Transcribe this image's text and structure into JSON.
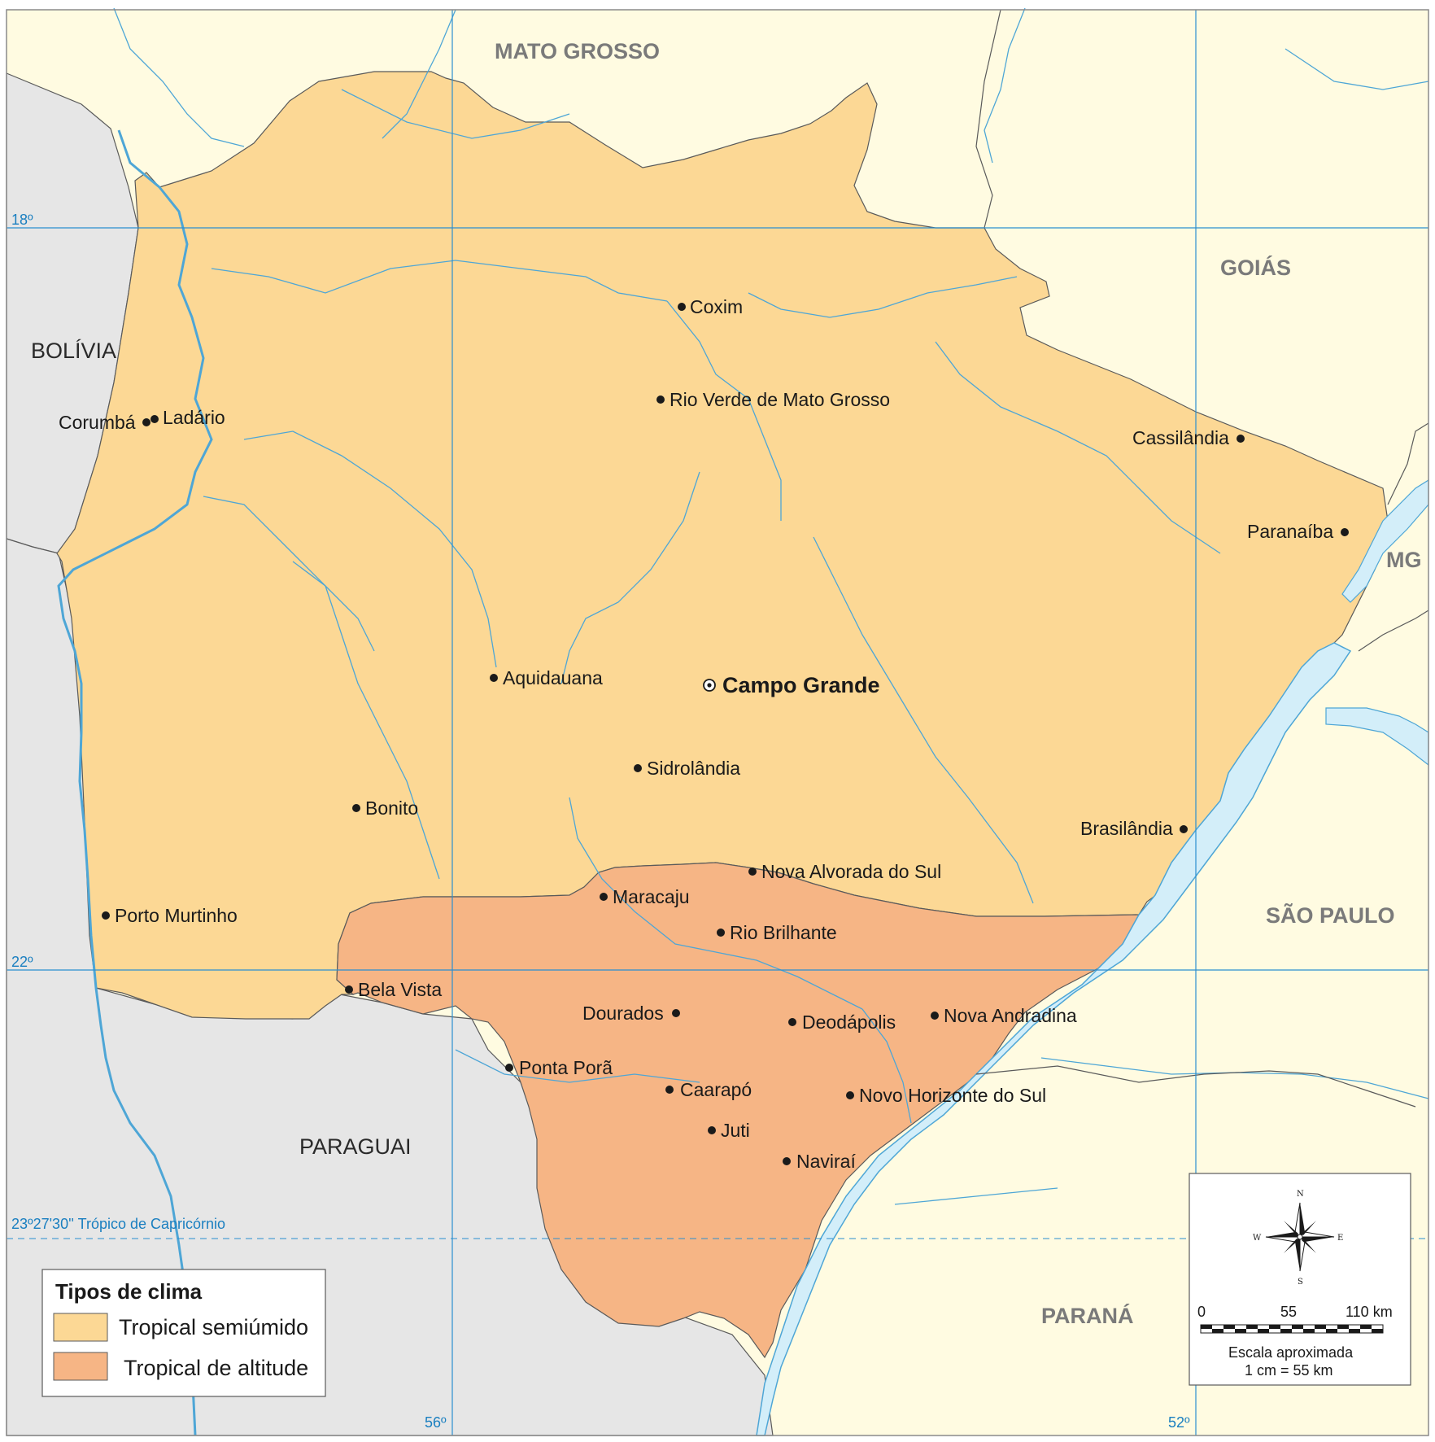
{
  "map": {
    "neighbors": {
      "mato_grosso": "MATO GROSSO",
      "goias": "GOIÁS",
      "mg": "MG",
      "sao_paulo": "SÃO PAULO",
      "parana": "PARANÁ",
      "bolivia": "BOLÍVIA",
      "paraguai": "PARAGUAI"
    },
    "coords": {
      "lat18": "18º",
      "lat22": "22º",
      "lon56": "56º",
      "lon52": "52º",
      "tropic": "23º27'30'' Trópico de Capricórnio"
    },
    "capital": "Campo Grande",
    "cities": {
      "coxim": "Coxim",
      "rio_verde": "Rio Verde de Mato Grosso",
      "corumba": "Corumbá",
      "ladario": "Ladário",
      "cassilandia": "Cassilândia",
      "paranaiba": "Paranaíba",
      "aquidauana": "Aquidauana",
      "sidrolandia": "Sidrolândia",
      "bonito": "Bonito",
      "brasilandia": "Brasilândia",
      "nova_alvorada": "Nova Alvorada do Sul",
      "maracaju": "Maracaju",
      "porto_murtinho": "Porto Murtinho",
      "rio_brilhante": "Rio Brilhante",
      "bela_vista": "Bela Vista",
      "dourados": "Dourados",
      "deodapolis": "Deodápolis",
      "nova_andradina": "Nova Andradina",
      "ponta_pora": "Ponta Porã",
      "caarapo": "Caarapó",
      "novo_horizonte": "Novo Horizonte do Sul",
      "juti": "Juti",
      "navirai": "Naviraí"
    },
    "colors": {
      "semiumido": "#fcd895",
      "altitude": "#f6b585",
      "brazil_land": "#fffbe1",
      "foreign_land": "#e6e6e6",
      "water": "#d3eef9",
      "river": "#4ea6d6",
      "grid": "#2b8fd0"
    }
  },
  "legend": {
    "title": "Tipos de clima",
    "items": [
      {
        "label": "Tropical semiúmido",
        "color": "#fcd895"
      },
      {
        "label": "Tropical de altitude",
        "color": "#f6b585"
      }
    ]
  },
  "scale": {
    "compass": {
      "n": "N",
      "s": "S",
      "e": "E",
      "w": "W"
    },
    "ticks": [
      "0",
      "55",
      "110 km"
    ],
    "caption_1": "Escala aproximada",
    "caption_2": "1 cm = 55 km"
  }
}
